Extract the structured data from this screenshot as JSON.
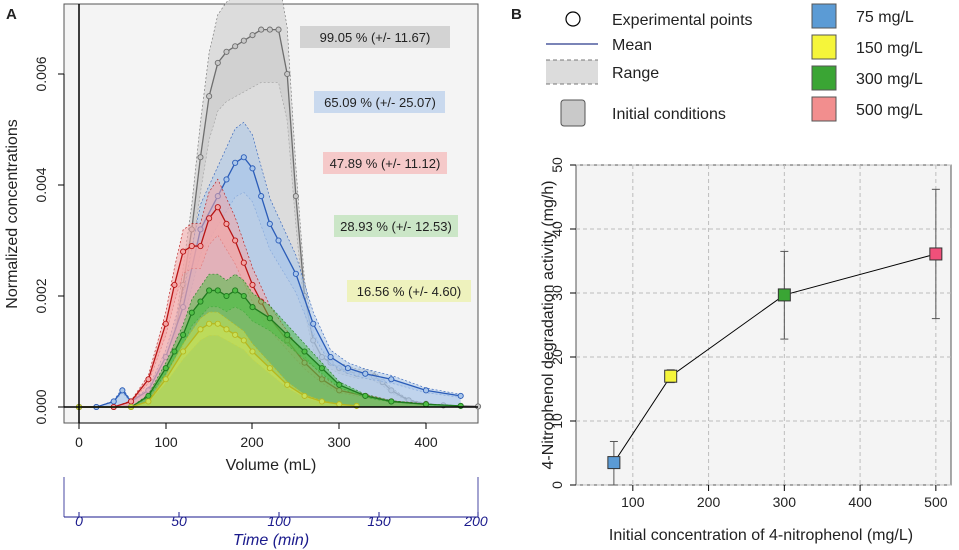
{
  "panel_a": {
    "label": "A",
    "ylabel": "Normalized concentrations",
    "xlabel": "Volume (mL)",
    "x2label": "Time (min)",
    "xticks": [
      "0",
      "100",
      "200",
      "300",
      "400"
    ],
    "x2ticks": [
      "0",
      "50",
      "100",
      "150",
      "200"
    ],
    "yticks": [
      "0.000",
      "0.002",
      "0.004",
      "0.006"
    ],
    "annotations": [
      {
        "text": "99.05 % (+/- 11.67)",
        "color": "#d3d3d3"
      },
      {
        "text": "65.09 % (+/- 25.07)",
        "color": "#c9d9ee"
      },
      {
        "text": "47.89 % (+/- 11.12)",
        "color": "#f5c9c9"
      },
      {
        "text": "28.93 % (+/- 12.53)",
        "color": "#cbe6c7"
      },
      {
        "text": "16.56 % (+/-  4.60)",
        "color": "#eef2bd"
      }
    ]
  },
  "panel_b": {
    "label": "B",
    "legend_left": [
      {
        "name": "circle-marker",
        "label": "Experimental points"
      },
      {
        "name": "mean-line",
        "label": "Mean"
      },
      {
        "name": "range-band",
        "label": "Range"
      },
      {
        "name": "initial-box",
        "label": "Initial conditions"
      }
    ],
    "legend_right": [
      {
        "label": "75 mg/L",
        "color": "#5b9bd5"
      },
      {
        "label": "150 mg/L",
        "color": "#f5f53a"
      },
      {
        "label": "300 mg/L",
        "color": "#3aa534"
      },
      {
        "label": "500 mg/L",
        "color": "#f28e8e"
      }
    ]
  },
  "chart_data": [
    {
      "type": "area",
      "title": "",
      "xlabel": "Volume (mL)",
      "ylabel": "Normalized concentrations",
      "xlim": [
        -15,
        460
      ],
      "ylim": [
        -0.0003,
        0.0071
      ],
      "series": [
        {
          "name": "Initial conditions",
          "color": "#6e6e6e",
          "fill": "#c8c8c8",
          "x": [
            0,
            20,
            40,
            60,
            80,
            100,
            110,
            120,
            130,
            140,
            150,
            160,
            170,
            180,
            190,
            200,
            210,
            220,
            230,
            240,
            250,
            260,
            270,
            280,
            290,
            300,
            310,
            320,
            330,
            340,
            350,
            360,
            380,
            400,
            420,
            440,
            460
          ],
          "y": [
            0,
            0,
            0,
            2e-05,
            0.0001,
            0.0005,
            0.0012,
            0.0022,
            0.0032,
            0.0045,
            0.0056,
            0.0062,
            0.0064,
            0.0065,
            0.0066,
            0.0067,
            0.0068,
            0.0068,
            0.0068,
            0.006,
            0.0038,
            0.002,
            0.0012,
            0.0009,
            0.0008,
            0.0007,
            0.00065,
            0.0006,
            0.0006,
            0.00055,
            0.00045,
            0.0003,
            0.00012,
            6e-05,
            3e-05,
            2e-05,
            1e-05
          ]
        },
        {
          "name": "75 mg/L",
          "color": "#2a5cb8",
          "fill": "#a9c6ea",
          "x": [
            0,
            20,
            40,
            50,
            60,
            80,
            100,
            120,
            140,
            160,
            170,
            180,
            190,
            200,
            210,
            220,
            230,
            250,
            270,
            290,
            310,
            330,
            360,
            400,
            440
          ],
          "y": [
            0,
            0,
            0.0001,
            0.0003,
            0.0001,
            0.0003,
            0.0009,
            0.0018,
            0.0032,
            0.0038,
            0.0041,
            0.0044,
            0.0045,
            0.0043,
            0.0038,
            0.0033,
            0.003,
            0.0024,
            0.0015,
            0.0009,
            0.0007,
            0.0006,
            0.0005,
            0.0003,
            0.0002
          ]
        },
        {
          "name": "500 mg/L",
          "color": "#b81414",
          "fill": "#f4a5a5",
          "x": [
            0,
            40,
            60,
            80,
            100,
            110,
            120,
            130,
            140,
            150,
            160,
            170,
            180,
            190,
            200,
            210,
            220,
            240,
            260,
            280,
            300,
            330,
            360,
            400
          ],
          "y": [
            0,
            0,
            0.0001,
            0.0005,
            0.0015,
            0.0022,
            0.0028,
            0.0029,
            0.0029,
            0.0034,
            0.0036,
            0.0033,
            0.003,
            0.0026,
            0.0022,
            0.0019,
            0.0016,
            0.0012,
            0.0008,
            0.0005,
            0.0003,
            0.0002,
            0.0001,
            5e-05
          ]
        },
        {
          "name": "300 mg/L",
          "color": "#1f7a1f",
          "fill": "#4fbd46",
          "x": [
            0,
            60,
            80,
            100,
            110,
            120,
            130,
            140,
            150,
            160,
            170,
            180,
            190,
            200,
            220,
            240,
            260,
            280,
            300,
            330,
            360,
            400,
            440
          ],
          "y": [
            0,
            0,
            0.0002,
            0.0007,
            0.001,
            0.0013,
            0.0017,
            0.0019,
            0.0021,
            0.0021,
            0.002,
            0.0021,
            0.002,
            0.0018,
            0.0016,
            0.0013,
            0.001,
            0.0007,
            0.0004,
            0.0002,
            0.0001,
            5e-05,
            2e-05
          ]
        },
        {
          "name": "150 mg/L",
          "color": "#b7b71e",
          "fill": "#c7e05a",
          "x": [
            0,
            60,
            80,
            100,
            120,
            140,
            150,
            160,
            170,
            180,
            190,
            200,
            220,
            240,
            260,
            280,
            300,
            320
          ],
          "y": [
            0,
            0,
            0.0001,
            0.0005,
            0.001,
            0.0014,
            0.0015,
            0.0015,
            0.0014,
            0.0013,
            0.0012,
            0.001,
            0.0007,
            0.0004,
            0.0002,
            0.0001,
            5e-05,
            2e-05
          ]
        }
      ]
    },
    {
      "type": "scatter",
      "title": "",
      "xlabel": "Initial concentration of 4-nitrophenol (mg/L)",
      "ylabel": "4-Nitrophenol degradation activity (mg/h)",
      "xlim": [
        25,
        520
      ],
      "ylim": [
        0,
        50
      ],
      "xticks": [
        100,
        200,
        300,
        400,
        500
      ],
      "yticks": [
        0,
        10,
        20,
        30,
        40,
        50
      ],
      "x": [
        75,
        150,
        300,
        500
      ],
      "y": [
        3.5,
        17.0,
        29.7,
        36.1
      ],
      "err_low": [
        0,
        16.0,
        22.8,
        26.0
      ],
      "err_high": [
        6.8,
        18.0,
        36.5,
        46.2
      ],
      "colors": [
        "#5b9bd5",
        "#f5f53a",
        "#3aa534",
        "#f0507a"
      ]
    }
  ]
}
